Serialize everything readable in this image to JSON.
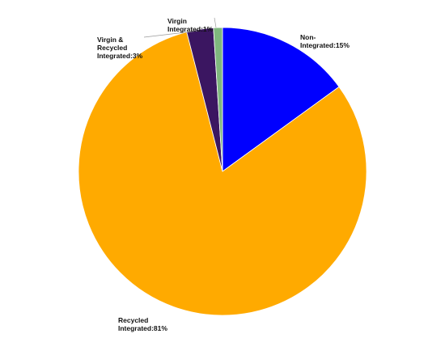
{
  "chart_data": {
    "type": "pie",
    "title": "",
    "start_angle_deg": 0,
    "direction": "clockwise",
    "slices": [
      {
        "label_lines": [
          "Non-",
          "Integrated:15%"
        ],
        "value": 15,
        "color": "#0000FF"
      },
      {
        "label_lines": [
          "Recycled",
          "Integrated:81%"
        ],
        "value": 81,
        "color": "#FFAA00"
      },
      {
        "label_lines": [
          "Virgin &",
          "Recycled",
          "Integrated:3%"
        ],
        "value": 3,
        "color": "#3B1661"
      },
      {
        "label_lines": [
          "Virgin",
          "Integrated:1%"
        ],
        "value": 1,
        "color": "#7FB77E"
      }
    ],
    "legend": "none",
    "labels": "outside"
  }
}
